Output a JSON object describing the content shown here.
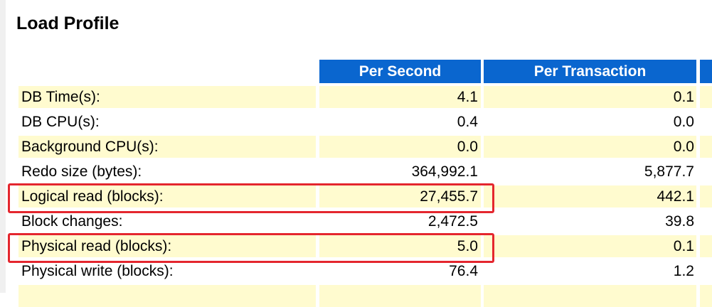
{
  "title": "Load Profile",
  "columns": {
    "per_second": "Per Second",
    "per_transaction": "Per Transaction"
  },
  "rows": [
    {
      "label": "DB Time(s):",
      "per_second": "4.1",
      "per_transaction": "0.1",
      "shaded": true
    },
    {
      "label": "DB CPU(s):",
      "per_second": "0.4",
      "per_transaction": "0.0",
      "shaded": false
    },
    {
      "label": "Background CPU(s):",
      "per_second": "0.0",
      "per_transaction": "0.0",
      "shaded": true
    },
    {
      "label": "Redo size (bytes):",
      "per_second": "364,992.1",
      "per_transaction": "5,877.7",
      "shaded": false
    },
    {
      "label": "Logical read (blocks):",
      "per_second": "27,455.7",
      "per_transaction": "442.1",
      "shaded": true,
      "highlighted": true
    },
    {
      "label": "Block changes:",
      "per_second": "2,472.5",
      "per_transaction": "39.8",
      "shaded": false
    },
    {
      "label": "Physical read (blocks):",
      "per_second": "5.0",
      "per_transaction": "0.1",
      "shaded": true,
      "highlighted": true
    },
    {
      "label": "Physical write (blocks):",
      "per_second": "76.4",
      "per_transaction": "1.2",
      "shaded": false
    },
    {
      "label": "",
      "per_second": "",
      "per_transaction": "",
      "shaded": true
    }
  ],
  "colors": {
    "header_bg": "#0a66cf",
    "shaded_row_bg": "#fffbcf",
    "highlight_border": "#e4262e"
  }
}
